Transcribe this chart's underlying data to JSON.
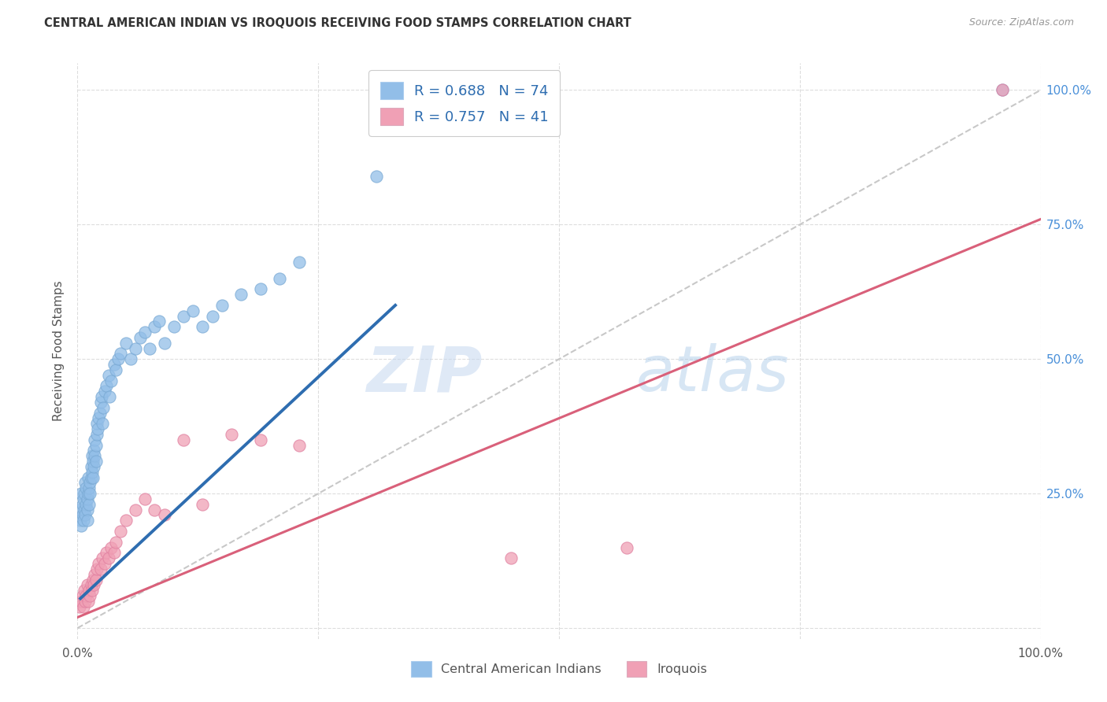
{
  "title": "CENTRAL AMERICAN INDIAN VS IROQUOIS RECEIVING FOOD STAMPS CORRELATION CHART",
  "source": "Source: ZipAtlas.com",
  "ylabel": "Receiving Food Stamps",
  "xlim": [
    0,
    1
  ],
  "ylim": [
    -0.02,
    1.05
  ],
  "xticks": [
    0,
    0.25,
    0.5,
    0.75,
    1.0
  ],
  "yticks": [
    0.25,
    0.5,
    0.75,
    1.0
  ],
  "yticklabels_right": [
    "25.0%",
    "50.0%",
    "75.0%",
    "100.0%"
  ],
  "blue_R": "0.688",
  "blue_N": "74",
  "pink_R": "0.757",
  "pink_N": "41",
  "blue_color": "#92BEE8",
  "pink_color": "#F0A0B5",
  "blue_edge_color": "#7AAAD4",
  "pink_edge_color": "#E080A0",
  "blue_line_color": "#2E6DB0",
  "pink_line_color": "#D9607A",
  "diagonal_color": "#C8C8C8",
  "watermark_zip": "ZIP",
  "watermark_atlas": "atlas",
  "legend_label_blue": "Central American Indians",
  "legend_label_pink": "Iroquois",
  "blue_scatter_x": [
    0.002,
    0.003,
    0.004,
    0.004,
    0.005,
    0.005,
    0.006,
    0.006,
    0.007,
    0.007,
    0.008,
    0.008,
    0.009,
    0.009,
    0.01,
    0.01,
    0.01,
    0.011,
    0.011,
    0.012,
    0.012,
    0.013,
    0.013,
    0.014,
    0.014,
    0.015,
    0.015,
    0.016,
    0.016,
    0.017,
    0.017,
    0.018,
    0.018,
    0.019,
    0.019,
    0.02,
    0.02,
    0.021,
    0.022,
    0.023,
    0.024,
    0.025,
    0.026,
    0.027,
    0.028,
    0.03,
    0.032,
    0.033,
    0.035,
    0.038,
    0.04,
    0.042,
    0.045,
    0.05,
    0.055,
    0.06,
    0.065,
    0.07,
    0.075,
    0.08,
    0.085,
    0.09,
    0.1,
    0.11,
    0.12,
    0.13,
    0.14,
    0.15,
    0.17,
    0.19,
    0.21,
    0.23,
    0.31,
    0.96
  ],
  "blue_scatter_y": [
    0.22,
    0.2,
    0.19,
    0.25,
    0.21,
    0.23,
    0.24,
    0.2,
    0.22,
    0.25,
    0.21,
    0.27,
    0.23,
    0.26,
    0.22,
    0.24,
    0.2,
    0.25,
    0.28,
    0.26,
    0.23,
    0.27,
    0.25,
    0.3,
    0.28,
    0.29,
    0.32,
    0.31,
    0.28,
    0.33,
    0.3,
    0.35,
    0.32,
    0.34,
    0.31,
    0.36,
    0.38,
    0.37,
    0.39,
    0.4,
    0.42,
    0.43,
    0.38,
    0.41,
    0.44,
    0.45,
    0.47,
    0.43,
    0.46,
    0.49,
    0.48,
    0.5,
    0.51,
    0.53,
    0.5,
    0.52,
    0.54,
    0.55,
    0.52,
    0.56,
    0.57,
    0.53,
    0.56,
    0.58,
    0.59,
    0.56,
    0.58,
    0.6,
    0.62,
    0.63,
    0.65,
    0.68,
    0.84,
    1.0
  ],
  "pink_scatter_x": [
    0.002,
    0.004,
    0.005,
    0.006,
    0.007,
    0.008,
    0.009,
    0.01,
    0.011,
    0.012,
    0.013,
    0.014,
    0.015,
    0.016,
    0.017,
    0.018,
    0.019,
    0.02,
    0.022,
    0.024,
    0.026,
    0.028,
    0.03,
    0.032,
    0.035,
    0.038,
    0.04,
    0.045,
    0.05,
    0.06,
    0.07,
    0.08,
    0.09,
    0.11,
    0.13,
    0.16,
    0.19,
    0.23,
    0.45,
    0.57,
    0.96
  ],
  "pink_scatter_y": [
    0.04,
    0.05,
    0.06,
    0.04,
    0.07,
    0.05,
    0.06,
    0.08,
    0.05,
    0.07,
    0.06,
    0.08,
    0.07,
    0.09,
    0.08,
    0.1,
    0.09,
    0.11,
    0.12,
    0.11,
    0.13,
    0.12,
    0.14,
    0.13,
    0.15,
    0.14,
    0.16,
    0.18,
    0.2,
    0.22,
    0.24,
    0.22,
    0.21,
    0.35,
    0.23,
    0.36,
    0.35,
    0.34,
    0.13,
    0.15,
    1.0
  ],
  "blue_line_x": [
    0.003,
    0.33
  ],
  "blue_line_y": [
    0.055,
    0.6
  ],
  "pink_line_x": [
    0.0,
    1.0
  ],
  "pink_line_y": [
    0.02,
    0.76
  ],
  "diag_line_x": [
    0.0,
    1.0
  ],
  "diag_line_y": [
    0.0,
    1.0
  ],
  "grid_color": "#DDDDDD",
  "title_color": "#333333",
  "source_color": "#999999",
  "tick_color": "#555555",
  "right_tick_color": "#4A90D9",
  "bottom_tick_color": "#555555"
}
